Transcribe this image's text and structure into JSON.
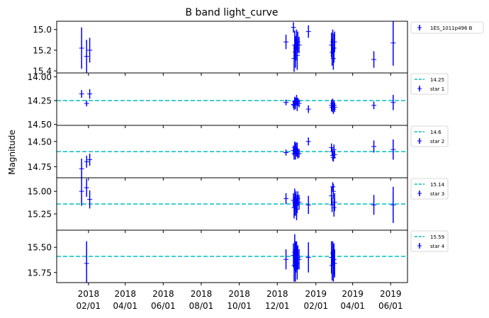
{
  "figure": {
    "title": "B band light_curve",
    "ylabel": "Magnitude",
    "x_tick_labels": [
      {
        "date": "2018-02-01",
        "line1": "2018",
        "line2": "02/01"
      },
      {
        "date": "2018-04-01",
        "line1": "2018",
        "line2": "04/01"
      },
      {
        "date": "2018-06-01",
        "line1": "2018",
        "line2": "06/01"
      },
      {
        "date": "2018-08-01",
        "line1": "2018",
        "line2": "08/01"
      },
      {
        "date": "2018-10-01",
        "line1": "2018",
        "line2": "10/01"
      },
      {
        "date": "2018-12-01",
        "line1": "2018",
        "line2": "12/01"
      },
      {
        "date": "2019-02-01",
        "line1": "2019",
        "line2": "02/01"
      },
      {
        "date": "2019-04-01",
        "line1": "2019",
        "line2": "04/01"
      },
      {
        "date": "2019-06-01",
        "line1": "2019",
        "line2": "06/01"
      }
    ],
    "colors": {
      "points": "#0000ff",
      "reference_line": "#00bfbf"
    }
  },
  "chart_data": [
    {
      "type": "scatter",
      "xlim": [
        "2017-12-12",
        "2019-06-28"
      ],
      "ylim": [
        15.42,
        14.92
      ],
      "y_inverted": true,
      "y_ticks": [
        "15.0",
        "15.2",
        "15.4"
      ],
      "reference_line": null,
      "legend": {
        "placement": "outside-right",
        "entries": [
          {
            "label": "1ES_1011p496 B",
            "kind": "errorbar"
          }
        ]
      },
      "points": [
        {
          "x": "2018-01-21",
          "y": 15.18,
          "err": 0.2
        },
        {
          "x": "2018-01-29",
          "y": 15.26,
          "err": 0.16
        },
        {
          "x": "2018-02-03",
          "y": 15.2,
          "err": 0.12
        },
        {
          "x": "2018-12-15",
          "y": 15.12,
          "err": 0.07
        },
        {
          "x": "2018-12-27",
          "y": 14.98,
          "err": 0.05
        },
        {
          "x": "2018-12-28",
          "y": 15.28,
          "err": 0.13
        },
        {
          "x": "2018-12-29",
          "y": 15.15,
          "err": 0.14
        },
        {
          "x": "2018-12-30",
          "y": 15.22,
          "err": 0.15
        },
        {
          "x": "2018-12-31",
          "y": 15.18,
          "err": 0.12
        },
        {
          "x": "2019-01-01",
          "y": 15.1,
          "err": 0.1
        },
        {
          "x": "2019-01-02",
          "y": 15.25,
          "err": 0.14
        },
        {
          "x": "2019-01-03",
          "y": 15.12,
          "err": 0.1
        },
        {
          "x": "2019-01-05",
          "y": 15.15,
          "err": 0.08
        },
        {
          "x": "2019-01-20",
          "y": 15.02,
          "err": 0.06
        },
        {
          "x": "2019-02-26",
          "y": 15.15,
          "err": 0.12
        },
        {
          "x": "2019-02-27",
          "y": 15.22,
          "err": 0.13
        },
        {
          "x": "2019-02-28",
          "y": 15.12,
          "err": 0.12
        },
        {
          "x": "2019-03-01",
          "y": 15.28,
          "err": 0.11
        },
        {
          "x": "2019-03-02",
          "y": 15.18,
          "err": 0.14
        },
        {
          "x": "2019-03-03",
          "y": 15.12,
          "err": 0.1
        },
        {
          "x": "2019-05-05",
          "y": 15.29,
          "err": 0.08
        },
        {
          "x": "2019-06-05",
          "y": 15.13,
          "err": 0.22
        }
      ]
    },
    {
      "type": "scatter",
      "xlim": [
        "2017-12-12",
        "2019-06-28"
      ],
      "ylim": [
        14.51,
        13.96
      ],
      "y_inverted": true,
      "y_ticks": [
        "14.00",
        "14.25",
        "14.50"
      ],
      "reference_line": {
        "value": 14.25,
        "label": "14.25"
      },
      "legend": {
        "placement": "outside-right",
        "entries": [
          {
            "label": "14.25",
            "kind": "line"
          },
          {
            "label": "star 1",
            "kind": "errorbar"
          }
        ]
      },
      "points": [
        {
          "x": "2018-01-21",
          "y": 14.18,
          "err": 0.04
        },
        {
          "x": "2018-01-29",
          "y": 14.28,
          "err": 0.03
        },
        {
          "x": "2018-02-03",
          "y": 14.18,
          "err": 0.05
        },
        {
          "x": "2018-12-15",
          "y": 14.27,
          "err": 0.03
        },
        {
          "x": "2018-12-27",
          "y": 14.29,
          "err": 0.04
        },
        {
          "x": "2018-12-28",
          "y": 14.3,
          "err": 0.05
        },
        {
          "x": "2018-12-29",
          "y": 14.26,
          "err": 0.05
        },
        {
          "x": "2018-12-30",
          "y": 14.28,
          "err": 0.06
        },
        {
          "x": "2018-12-31",
          "y": 14.26,
          "err": 0.04
        },
        {
          "x": "2019-01-01",
          "y": 14.24,
          "err": 0.05
        },
        {
          "x": "2019-01-02",
          "y": 14.3,
          "err": 0.06
        },
        {
          "x": "2019-01-03",
          "y": 14.26,
          "err": 0.04
        },
        {
          "x": "2019-01-05",
          "y": 14.28,
          "err": 0.04
        },
        {
          "x": "2019-01-20",
          "y": 14.34,
          "err": 0.04
        },
        {
          "x": "2019-02-26",
          "y": 14.3,
          "err": 0.06
        },
        {
          "x": "2019-02-27",
          "y": 14.32,
          "err": 0.05
        },
        {
          "x": "2019-02-28",
          "y": 14.28,
          "err": 0.05
        },
        {
          "x": "2019-03-01",
          "y": 14.34,
          "err": 0.05
        },
        {
          "x": "2019-03-02",
          "y": 14.3,
          "err": 0.05
        },
        {
          "x": "2019-03-03",
          "y": 14.32,
          "err": 0.05
        },
        {
          "x": "2019-05-05",
          "y": 14.3,
          "err": 0.04
        },
        {
          "x": "2019-06-05",
          "y": 14.27,
          "err": 0.08
        }
      ]
    },
    {
      "type": "scatter",
      "xlim": [
        "2017-12-12",
        "2019-06-28"
      ],
      "ylim": [
        14.86,
        14.34
      ],
      "y_inverted": true,
      "y_ticks": [
        "14.50",
        "14.75"
      ],
      "reference_line": {
        "value": 14.6,
        "label": "14.6"
      },
      "legend": {
        "placement": "outside-right",
        "entries": [
          {
            "label": "14.6",
            "kind": "line"
          },
          {
            "label": "star 2",
            "kind": "errorbar"
          }
        ]
      },
      "points": [
        {
          "x": "2018-01-21",
          "y": 14.77,
          "err": 0.1
        },
        {
          "x": "2018-01-29",
          "y": 14.7,
          "err": 0.06
        },
        {
          "x": "2018-02-03",
          "y": 14.68,
          "err": 0.06
        },
        {
          "x": "2018-12-15",
          "y": 14.61,
          "err": 0.03
        },
        {
          "x": "2018-12-27",
          "y": 14.59,
          "err": 0.05
        },
        {
          "x": "2018-12-28",
          "y": 14.62,
          "err": 0.06
        },
        {
          "x": "2018-12-29",
          "y": 14.56,
          "err": 0.06
        },
        {
          "x": "2018-12-30",
          "y": 14.6,
          "err": 0.08
        },
        {
          "x": "2018-12-31",
          "y": 14.57,
          "err": 0.06
        },
        {
          "x": "2019-01-01",
          "y": 14.6,
          "err": 0.05
        },
        {
          "x": "2019-01-02",
          "y": 14.58,
          "err": 0.07
        },
        {
          "x": "2019-01-03",
          "y": 14.62,
          "err": 0.05
        },
        {
          "x": "2019-01-05",
          "y": 14.62,
          "err": 0.04
        },
        {
          "x": "2019-01-20",
          "y": 14.5,
          "err": 0.04
        },
        {
          "x": "2019-02-26",
          "y": 14.56,
          "err": 0.04
        },
        {
          "x": "2019-02-27",
          "y": 14.6,
          "err": 0.04
        },
        {
          "x": "2019-02-28",
          "y": 14.64,
          "err": 0.05
        },
        {
          "x": "2019-03-01",
          "y": 14.66,
          "err": 0.04
        },
        {
          "x": "2019-03-02",
          "y": 14.58,
          "err": 0.05
        },
        {
          "x": "2019-03-03",
          "y": 14.63,
          "err": 0.04
        },
        {
          "x": "2019-05-05",
          "y": 14.55,
          "err": 0.06
        },
        {
          "x": "2019-06-05",
          "y": 14.58,
          "err": 0.1
        }
      ]
    },
    {
      "type": "scatter",
      "xlim": [
        "2017-12-12",
        "2019-06-28"
      ],
      "ylim": [
        15.43,
        14.85
      ],
      "y_inverted": true,
      "y_ticks": [
        "15.00",
        "15.25"
      ],
      "reference_line": {
        "value": 15.14,
        "label": "15.14"
      },
      "legend": {
        "placement": "outside-right",
        "entries": [
          {
            "label": "15.14",
            "kind": "line"
          },
          {
            "label": "star 3",
            "kind": "errorbar"
          }
        ]
      },
      "points": [
        {
          "x": "2018-01-21",
          "y": 15.0,
          "err": 0.16
        },
        {
          "x": "2018-01-29",
          "y": 14.96,
          "err": 0.1
        },
        {
          "x": "2018-02-03",
          "y": 15.09,
          "err": 0.1
        },
        {
          "x": "2018-12-15",
          "y": 15.08,
          "err": 0.06
        },
        {
          "x": "2018-12-27",
          "y": 15.1,
          "err": 0.08
        },
        {
          "x": "2018-12-28",
          "y": 15.18,
          "err": 0.12
        },
        {
          "x": "2018-12-29",
          "y": 15.12,
          "err": 0.15
        },
        {
          "x": "2018-12-30",
          "y": 15.15,
          "err": 0.12
        },
        {
          "x": "2018-12-31",
          "y": 15.1,
          "err": 0.1
        },
        {
          "x": "2019-01-01",
          "y": 15.2,
          "err": 0.12
        },
        {
          "x": "2019-01-02",
          "y": 15.14,
          "err": 0.1
        },
        {
          "x": "2019-01-03",
          "y": 15.08,
          "err": 0.08
        },
        {
          "x": "2019-01-05",
          "y": 15.12,
          "err": 0.08
        },
        {
          "x": "2019-01-20",
          "y": 15.15,
          "err": 0.1
        },
        {
          "x": "2019-02-26",
          "y": 15.05,
          "err": 0.1
        },
        {
          "x": "2019-02-27",
          "y": 15.15,
          "err": 0.08
        },
        {
          "x": "2019-02-28",
          "y": 14.95,
          "err": 0.05
        },
        {
          "x": "2019-03-01",
          "y": 15.0,
          "err": 0.08
        },
        {
          "x": "2019-03-02",
          "y": 15.18,
          "err": 0.1
        },
        {
          "x": "2019-03-03",
          "y": 15.12,
          "err": 0.1
        },
        {
          "x": "2019-05-05",
          "y": 15.15,
          "err": 0.11
        },
        {
          "x": "2019-06-05",
          "y": 15.15,
          "err": 0.2
        }
      ]
    },
    {
      "type": "scatter",
      "xlim": [
        "2017-12-12",
        "2019-06-28"
      ],
      "ylim": [
        15.85,
        15.33
      ],
      "y_inverted": true,
      "y_ticks": [
        "15.50",
        "15.75"
      ],
      "reference_line": {
        "value": 15.59,
        "label": "15.59"
      },
      "legend": {
        "placement": "outside-right",
        "entries": [
          {
            "label": "15.59",
            "kind": "line"
          },
          {
            "label": "star 4",
            "kind": "errorbar"
          }
        ]
      },
      "points": [
        {
          "x": "2018-01-29",
          "y": 15.66,
          "err": 0.22
        },
        {
          "x": "2018-12-15",
          "y": 15.62,
          "err": 0.1
        },
        {
          "x": "2018-12-27",
          "y": 15.58,
          "err": 0.12
        },
        {
          "x": "2018-12-28",
          "y": 15.68,
          "err": 0.16
        },
        {
          "x": "2018-12-29",
          "y": 15.55,
          "err": 0.18
        },
        {
          "x": "2018-12-30",
          "y": 15.64,
          "err": 0.2
        },
        {
          "x": "2018-12-31",
          "y": 15.6,
          "err": 0.15
        },
        {
          "x": "2019-01-01",
          "y": 15.58,
          "err": 0.14
        },
        {
          "x": "2019-01-02",
          "y": 15.66,
          "err": 0.16
        },
        {
          "x": "2019-01-03",
          "y": 15.6,
          "err": 0.12
        },
        {
          "x": "2019-01-05",
          "y": 15.62,
          "err": 0.1
        },
        {
          "x": "2019-01-20",
          "y": 15.6,
          "err": 0.15
        },
        {
          "x": "2019-02-26",
          "y": 15.6,
          "err": 0.16
        },
        {
          "x": "2019-02-27",
          "y": 15.68,
          "err": 0.15
        },
        {
          "x": "2019-02-28",
          "y": 15.56,
          "err": 0.12
        },
        {
          "x": "2019-03-01",
          "y": 15.66,
          "err": 0.18
        },
        {
          "x": "2019-03-02",
          "y": 15.62,
          "err": 0.16
        },
        {
          "x": "2019-03-03",
          "y": 15.66,
          "err": 0.14
        }
      ]
    }
  ]
}
